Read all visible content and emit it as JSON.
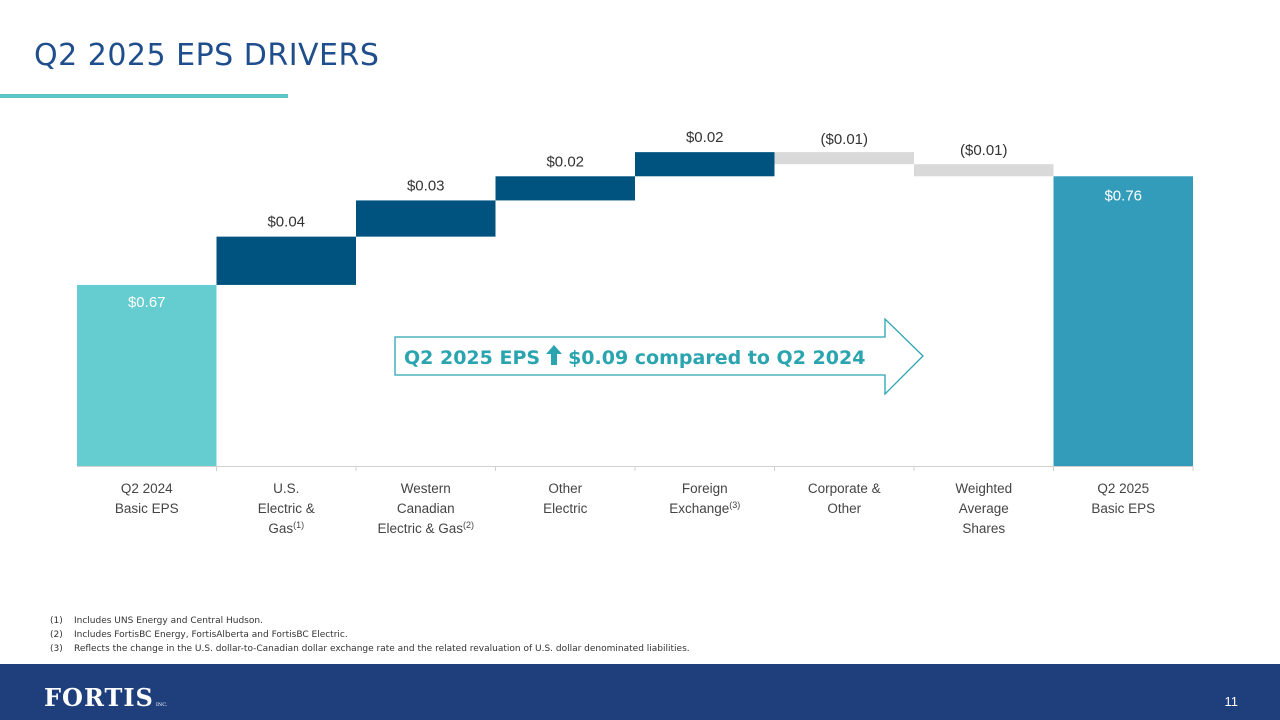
{
  "title": "Q2 2025 EPS DRIVERS",
  "chart_data": {
    "type": "waterfall",
    "title": "Q2 2025 EPS DRIVERS",
    "ylim": [
      0.52,
      0.8
    ],
    "steps": [
      {
        "label": [
          "Q2 2024",
          "Basic EPS"
        ],
        "sup": "",
        "value": 0.67,
        "kind": "total",
        "data_label": "$0.67",
        "color": "#65ccd0"
      },
      {
        "label": [
          "U.S.",
          "Electric &",
          "Gas"
        ],
        "sup": "(1)",
        "value": 0.04,
        "kind": "increase",
        "data_label": "$0.04",
        "color": "#00527f"
      },
      {
        "label": [
          "Western",
          "Canadian",
          "Electric & Gas"
        ],
        "sup": "(2)",
        "value": 0.03,
        "kind": "increase",
        "data_label": "$0.03",
        "color": "#00527f"
      },
      {
        "label": [
          "Other",
          "Electric"
        ],
        "sup": "",
        "value": 0.02,
        "kind": "increase",
        "data_label": "$0.02",
        "color": "#00527f"
      },
      {
        "label": [
          "Foreign",
          "Exchange"
        ],
        "sup": "(3)",
        "value": 0.02,
        "kind": "increase",
        "data_label": "$0.02",
        "color": "#00527f"
      },
      {
        "label": [
          "Corporate &",
          "Other"
        ],
        "sup": "",
        "value": -0.01,
        "kind": "decrease",
        "data_label": "($0.01)",
        "color": "#d9d9d9"
      },
      {
        "label": [
          "Weighted",
          "Average",
          "Shares"
        ],
        "sup": "",
        "value": -0.01,
        "kind": "decrease",
        "data_label": "($0.01)",
        "color": "#d9d9d9"
      },
      {
        "label": [
          "Q2 2025",
          "Basic EPS"
        ],
        "sup": "",
        "value": 0.76,
        "kind": "total",
        "data_label": "$0.76",
        "color": "#339cba"
      }
    ]
  },
  "callout": {
    "prefix": "Q2 2025 EPS",
    "suffix": "$0.09 compared to Q2 2024",
    "arrow_icon": "up-arrow-icon",
    "color": "#2aa5b0"
  },
  "footnotes": [
    {
      "num": "(1)",
      "text": "Includes UNS Energy and Central Hudson."
    },
    {
      "num": "(2)",
      "text": "Includes FortisBC Energy, FortisAlberta and FortisBC Electric."
    },
    {
      "num": "(3)",
      "text": "Reflects the change in the U.S. dollar-to-Canadian dollar exchange rate and the related revaluation of U.S. dollar denominated liabilities."
    }
  ],
  "footer": {
    "logo_text": "FORTIS",
    "logo_suffix": "INC.",
    "page_number": "11",
    "background": "#1f3f7c"
  }
}
